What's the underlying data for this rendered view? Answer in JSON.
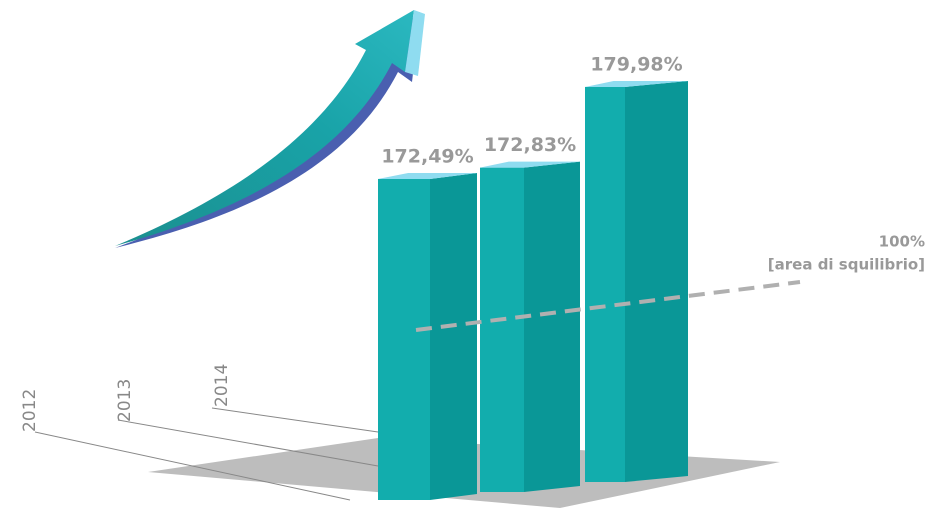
{
  "chart_data": {
    "type": "bar3d",
    "categories": [
      "2012",
      "2013",
      "2014"
    ],
    "values": [
      172.49,
      172.83,
      179.98
    ],
    "value_labels": [
      "172,49%",
      "172,83%",
      "179,98%"
    ],
    "ylim": [
      140,
      182
    ],
    "annotations": [
      "100%",
      "[area di squilibrio]"
    ],
    "colors": {
      "front": "#12adad",
      "side": "#0a9797",
      "top": "#8fdcf0"
    }
  }
}
